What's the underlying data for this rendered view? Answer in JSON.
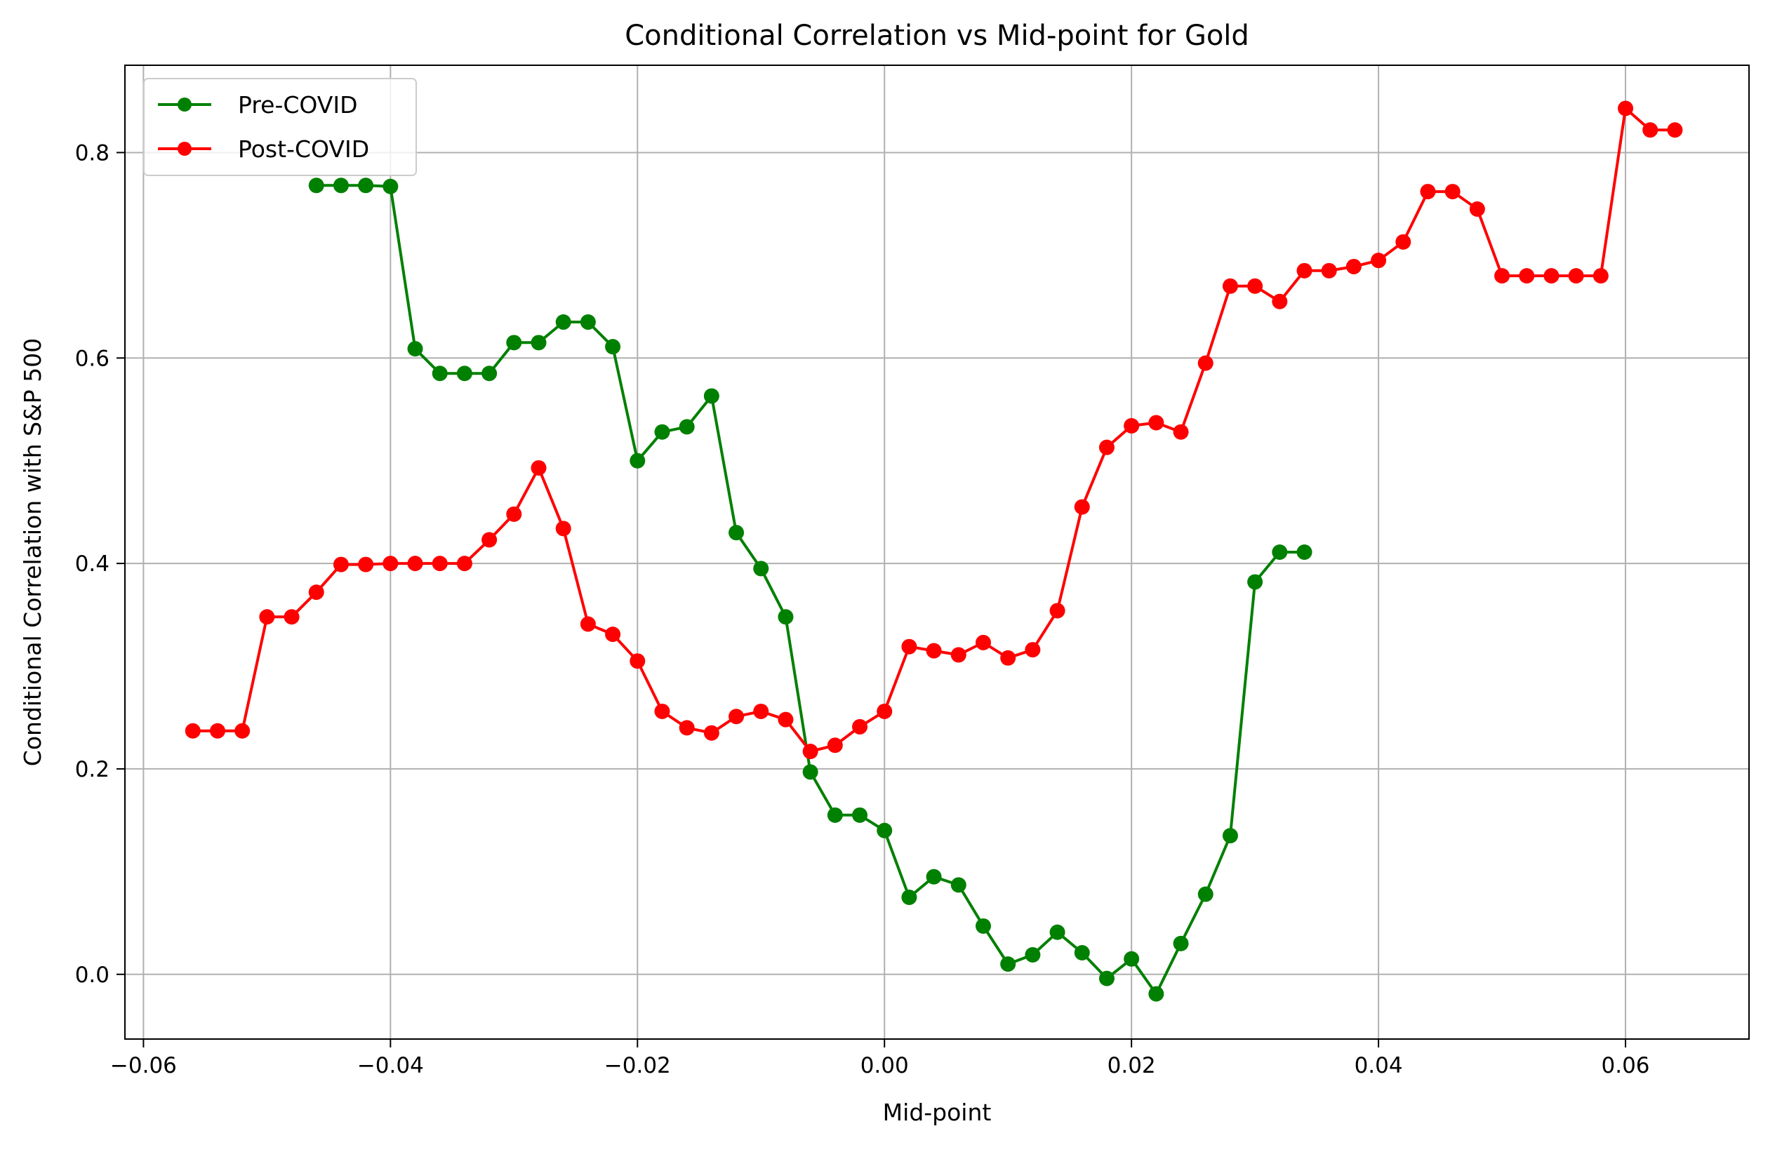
{
  "chart_data": {
    "type": "line",
    "title": "Conditional Correlation vs Mid-point for Gold",
    "xlabel": "Mid-point",
    "ylabel": "Conditional Correlation with S&P 500",
    "xlim": [
      -0.0615,
      0.07
    ],
    "ylim": [
      -0.063,
      0.885
    ],
    "x_ticks": [
      -0.06,
      -0.04,
      -0.02,
      0.0,
      0.02,
      0.04,
      0.06
    ],
    "x_tick_labels": [
      "−0.06",
      "−0.04",
      "−0.02",
      "0.00",
      "0.02",
      "0.04",
      "0.06"
    ],
    "y_ticks": [
      0.0,
      0.2,
      0.4,
      0.6,
      0.8
    ],
    "y_tick_labels": [
      "0.0",
      "0.2",
      "0.4",
      "0.6",
      "0.8"
    ],
    "grid": true,
    "legend_position": "top-left",
    "series": [
      {
        "name": "Pre-COVID",
        "color": "#008000",
        "marker": "circle",
        "x": [
          -0.046,
          -0.044,
          -0.042,
          -0.04,
          -0.038,
          -0.036,
          -0.034,
          -0.032,
          -0.03,
          -0.028,
          -0.026,
          -0.024,
          -0.022,
          -0.02,
          -0.018,
          -0.016,
          -0.014,
          -0.012,
          -0.01,
          -0.008,
          -0.006,
          -0.004,
          -0.002,
          0.0,
          0.002,
          0.004,
          0.006,
          0.008,
          0.01,
          0.012,
          0.014,
          0.016,
          0.018,
          0.02,
          0.022,
          0.024,
          0.026,
          0.028,
          0.03,
          0.032,
          0.034
        ],
        "y": [
          0.768,
          0.768,
          0.768,
          0.767,
          0.609,
          0.585,
          0.585,
          0.585,
          0.615,
          0.615,
          0.635,
          0.635,
          0.611,
          0.5,
          0.528,
          0.533,
          0.563,
          0.43,
          0.395,
          0.348,
          0.197,
          0.155,
          0.155,
          0.14,
          0.075,
          0.095,
          0.087,
          0.047,
          0.01,
          0.019,
          0.041,
          0.021,
          -0.004,
          0.015,
          -0.019,
          0.03,
          0.078,
          0.135,
          0.382,
          0.411,
          0.411
        ]
      },
      {
        "name": "Post-COVID",
        "color": "#ff0000",
        "marker": "circle",
        "x": [
          -0.056,
          -0.054,
          -0.052,
          -0.05,
          -0.048,
          -0.046,
          -0.044,
          -0.042,
          -0.04,
          -0.038,
          -0.036,
          -0.034,
          -0.032,
          -0.03,
          -0.028,
          -0.026,
          -0.024,
          -0.022,
          -0.02,
          -0.018,
          -0.016,
          -0.014,
          -0.012,
          -0.01,
          -0.008,
          -0.006,
          -0.004,
          -0.002,
          0.0,
          0.002,
          0.004,
          0.006,
          0.008,
          0.01,
          0.012,
          0.014,
          0.016,
          0.018,
          0.02,
          0.022,
          0.024,
          0.026,
          0.028,
          0.03,
          0.032,
          0.034,
          0.036,
          0.038,
          0.04,
          0.042,
          0.044,
          0.046,
          0.048,
          0.05,
          0.052,
          0.054,
          0.056,
          0.058,
          0.06,
          0.062,
          0.064
        ],
        "y": [
          0.237,
          0.237,
          0.237,
          0.348,
          0.348,
          0.372,
          0.399,
          0.399,
          0.4,
          0.4,
          0.4,
          0.4,
          0.423,
          0.448,
          0.493,
          0.434,
          0.341,
          0.331,
          0.305,
          0.256,
          0.24,
          0.235,
          0.251,
          0.256,
          0.248,
          0.217,
          0.223,
          0.241,
          0.256,
          0.319,
          0.315,
          0.311,
          0.323,
          0.308,
          0.316,
          0.354,
          0.455,
          0.513,
          0.534,
          0.537,
          0.528,
          0.595,
          0.67,
          0.67,
          0.655,
          0.685,
          0.685,
          0.689,
          0.695,
          0.713,
          0.762,
          0.762,
          0.745,
          0.68,
          0.68,
          0.68,
          0.68,
          0.68,
          0.843,
          0.822,
          0.822
        ]
      }
    ]
  }
}
